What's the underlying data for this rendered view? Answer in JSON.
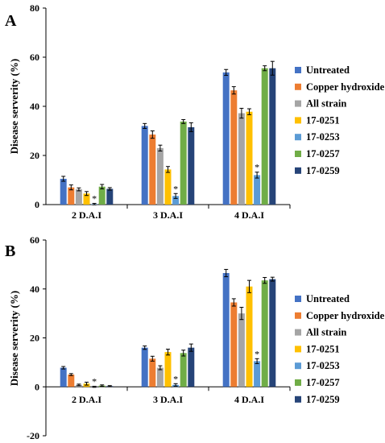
{
  "chart_data": [
    {
      "panel_label": "A",
      "type": "bar",
      "categories": [
        "2 D.A.I",
        "3 D.A.I",
        "4 D.A.I"
      ],
      "ylabel": "Disease serverity (%)",
      "xlabel": "",
      "ylim": [
        0,
        80
      ],
      "yticks": [
        0,
        20,
        40,
        60,
        80
      ],
      "legend_position": "right",
      "grid": false,
      "series": [
        {
          "name": "Untreated",
          "color": "#4472C4",
          "values": [
            10.5,
            32.0,
            53.8
          ],
          "errors": [
            1.0,
            1.0,
            1.2
          ],
          "asterisk": [
            false,
            false,
            false
          ]
        },
        {
          "name": "Copper hydroxide",
          "color": "#ED7D31",
          "values": [
            7.0,
            28.5,
            46.5
          ],
          "errors": [
            1.0,
            1.5,
            1.5
          ],
          "asterisk": [
            false,
            false,
            false
          ]
        },
        {
          "name": "All strain",
          "color": "#A5A5A5",
          "values": [
            6.2,
            23.0,
            37.2
          ],
          "errors": [
            0.6,
            1.2,
            2.0
          ],
          "asterisk": [
            false,
            false,
            false
          ]
        },
        {
          "name": "17-0251",
          "color": "#FFC000",
          "values": [
            4.5,
            14.3,
            37.8
          ],
          "errors": [
            0.8,
            1.2,
            1.2
          ],
          "asterisk": [
            false,
            false,
            false
          ]
        },
        {
          "name": "17-0253",
          "color": "#5B9BD5",
          "values": [
            0.2,
            3.5,
            12.0
          ],
          "errors": [
            0.3,
            1.0,
            1.2
          ],
          "asterisk": [
            true,
            true,
            true
          ]
        },
        {
          "name": "17-0257",
          "color": "#70AD47",
          "values": [
            7.3,
            33.8,
            55.5
          ],
          "errors": [
            0.9,
            0.8,
            1.0
          ],
          "asterisk": [
            false,
            false,
            false
          ]
        },
        {
          "name": "17-0259",
          "color": "#264478",
          "values": [
            6.4,
            31.5,
            55.5
          ],
          "errors": [
            0.5,
            1.8,
            2.8
          ],
          "asterisk": [
            false,
            false,
            false
          ]
        }
      ]
    },
    {
      "panel_label": "B",
      "type": "bar",
      "categories": [
        "2 D.A.I",
        "3 D.A.I",
        "4 D.A.I"
      ],
      "ylabel": "Disease serverity (%)",
      "xlabel": "",
      "ylim": [
        -20,
        60
      ],
      "yticks": [
        -20,
        0,
        20,
        40,
        60
      ],
      "legend_position": "right",
      "grid": false,
      "series": [
        {
          "name": "Untreated",
          "color": "#4472C4",
          "values": [
            7.8,
            16.0,
            46.5
          ],
          "errors": [
            0.5,
            0.7,
            1.5
          ],
          "asterisk": [
            false,
            false,
            false
          ]
        },
        {
          "name": "Copper hydroxide",
          "color": "#ED7D31",
          "values": [
            5.0,
            11.5,
            34.5
          ],
          "errors": [
            0.4,
            1.0,
            1.5
          ],
          "asterisk": [
            false,
            false,
            false
          ]
        },
        {
          "name": "All strain",
          "color": "#A5A5A5",
          "values": [
            0.8,
            7.8,
            30.0
          ],
          "errors": [
            0.3,
            0.8,
            2.5
          ],
          "asterisk": [
            false,
            false,
            false
          ]
        },
        {
          "name": "17-0251",
          "color": "#FFC000",
          "values": [
            1.3,
            14.2,
            41.0
          ],
          "errors": [
            0.6,
            1.2,
            2.5
          ],
          "asterisk": [
            false,
            false,
            false
          ]
        },
        {
          "name": "17-0253",
          "color": "#5B9BD5",
          "values": [
            0.0,
            0.8,
            10.5
          ],
          "errors": [
            0.2,
            0.5,
            1.0
          ],
          "asterisk": [
            true,
            true,
            true
          ]
        },
        {
          "name": "17-0257",
          "color": "#70AD47",
          "values": [
            0.5,
            13.8,
            43.5
          ],
          "errors": [
            0.3,
            1.2,
            1.2
          ],
          "asterisk": [
            false,
            false,
            false
          ]
        },
        {
          "name": "17-0259",
          "color": "#264478",
          "values": [
            0.3,
            16.0,
            44.0
          ],
          "errors": [
            0.2,
            1.5,
            0.8
          ],
          "asterisk": [
            false,
            false,
            false
          ]
        }
      ]
    }
  ]
}
